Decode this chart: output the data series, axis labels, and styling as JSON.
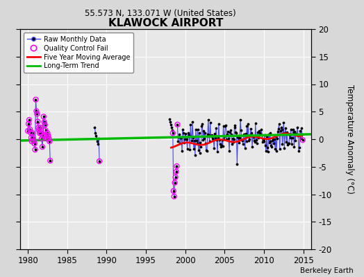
{
  "title": "KLAWOCK AIRPORT",
  "subtitle": "55.573 N, 133.071 W (United States)",
  "ylabel": "Temperature Anomaly (°C)",
  "watermark": "Berkeley Earth",
  "xlim": [
    1979,
    2016
  ],
  "ylim": [
    -20,
    20
  ],
  "yticks": [
    -20,
    -15,
    -10,
    -5,
    0,
    5,
    10,
    15,
    20
  ],
  "xticks": [
    1980,
    1985,
    1990,
    1995,
    2000,
    2005,
    2010,
    2015
  ],
  "bg_color": "#d8d8d8",
  "plot_bg_color": "#e8e8e8",
  "grid_color": "#ffffff",
  "raw_color": "#4444ff",
  "raw_dot_color": "#000000",
  "qc_color": "#ff00ff",
  "moving_avg_color": "#ff0000",
  "trend_color": "#00bb00",
  "trend_x": [
    1979,
    2016
  ],
  "trend_y": [
    -0.25,
    0.9
  ]
}
